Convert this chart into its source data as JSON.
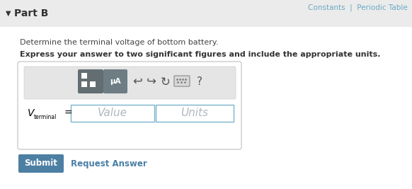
{
  "bg_color": "#f0f0f0",
  "page_bg": "#f5f5f5",
  "white": "#ffffff",
  "part_b_text": "Part B",
  "line1": "Determine the terminal voltage of bottom battery.",
  "line2": "Express your answer to two significant figures and include the appropriate units.",
  "value_placeholder": "Value",
  "units_placeholder": "Units",
  "submit_text": "Submit",
  "request_text": "Request Answer",
  "submit_color": "#4d7fa3",
  "submit_text_color": "#ffffff",
  "request_color": "#4a7fa5",
  "toolbar_bg": "#e2e2e2",
  "icon1_color": "#636e72",
  "icon2_color": "#6e7d84",
  "input_border": "#7ab3cc",
  "top_right_text": "Constants  |  Periodic Table",
  "text_color": "#444444",
  "bold_text_color": "#333333",
  "partb_color": "#333333",
  "link_color": "#4a7fa5",
  "toplink_color": "#6aaac5"
}
